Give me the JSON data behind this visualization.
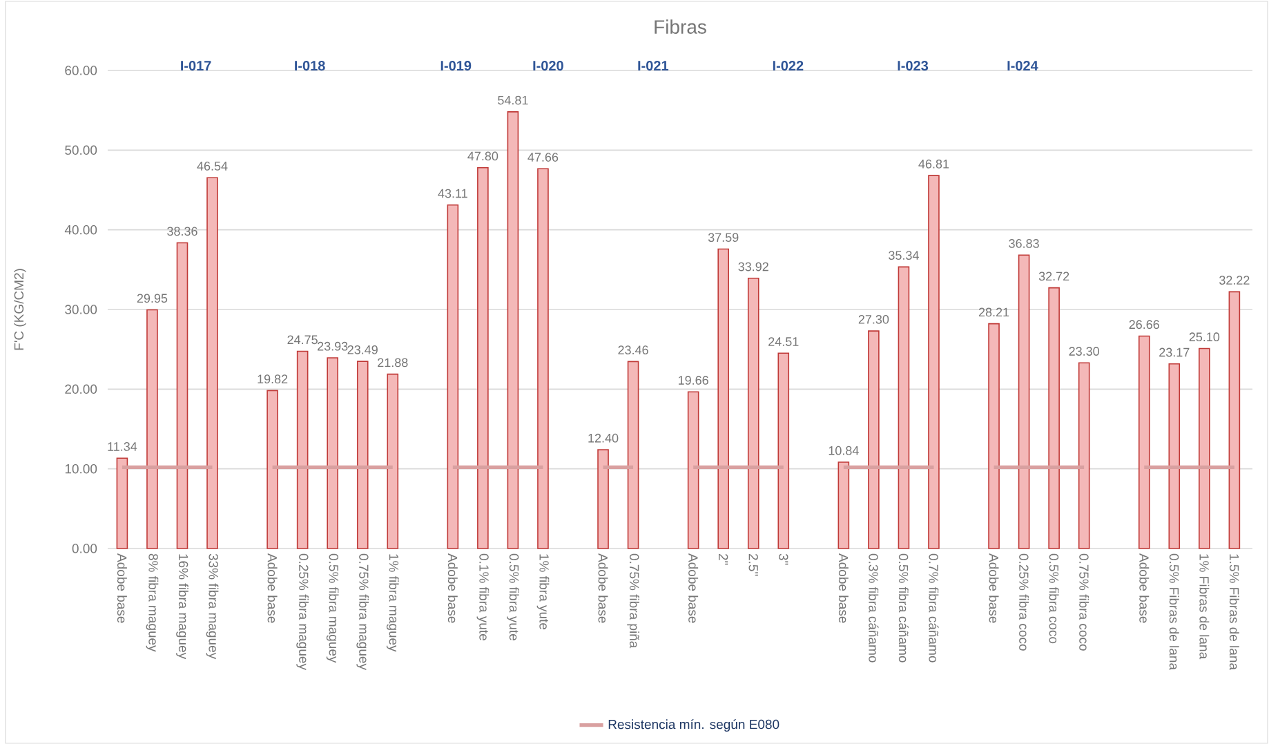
{
  "chart_data": {
    "type": "bar",
    "title": "Fibras",
    "ylabel": "F'C (KG/CM2)",
    "annotations": [
      "I-017",
      "I-018",
      "I-019",
      "I-020",
      "I-021",
      "I-022",
      "I-023",
      "I-024"
    ],
    "categories": [
      "Adobe base",
      "8% fibra maguey",
      "16% fibra maguey",
      "33% fibra maguey",
      null,
      "Adobe base",
      "0.25% fibra maguey",
      "0.5% fibra maguey",
      "0.75% fibra maguey",
      "1% fibra maguey",
      null,
      "Adobe base",
      "0.1% fibra yute",
      "0.5% fibra yute",
      "1% fibra yute",
      null,
      "Adobe base",
      "0.75% fibra piña",
      null,
      "Adobe base",
      "2\"",
      "2.5\"",
      "3\"",
      null,
      "Adobe base",
      "0.3% fibra cáñamo",
      "0.5% fibra cáñamo",
      "0.7% fibra cáñamo",
      null,
      "Adobe base",
      "0.25% fibra coco",
      "0.5% fibra coco",
      "0.75% fibra coco",
      null,
      "Adobe base",
      "0.5% Fibras de lana",
      "1% Fibras de lana",
      "1.5% Fibras de lana"
    ],
    "series": [
      {
        "color": "#f4b8b8",
        "values": [
          11.34,
          29.95,
          38.36,
          46.54,
          null,
          19.82,
          24.75,
          23.93,
          23.49,
          21.88,
          null,
          43.11,
          47.8,
          54.81,
          47.66,
          null,
          12.4,
          23.46,
          null,
          19.66,
          37.59,
          33.92,
          24.51,
          null,
          10.84,
          27.3,
          35.34,
          46.81,
          null,
          28.21,
          36.83,
          32.72,
          23.3,
          null,
          26.66,
          23.17,
          25.1,
          32.22
        ],
        "value_labels": [
          "11.34",
          "29.95",
          "38.36",
          "46.54",
          null,
          "19.82",
          "24.75",
          "23.93",
          "23.49",
          "21.88",
          null,
          "43.11",
          "47.80",
          "54.81",
          "47.66",
          null,
          "12.40",
          "23.46",
          null,
          "19.66",
          "37.59",
          "33.92",
          "24.51",
          null,
          "10.84",
          "27.30",
          "35.34",
          "46.81",
          null,
          "28.21",
          "36.83",
          "32.72",
          "23.30",
          null,
          "26.66",
          "23.17",
          "25.10",
          "32.22"
        ]
      },
      {
        "type": "line",
        "name": "Resistencia mín. según E080",
        "color": "#d9a0a0",
        "values": [
          10.2,
          10.2,
          10.2,
          10.2,
          null,
          10.2,
          10.2,
          10.2,
          10.2,
          10.2,
          null,
          10.2,
          10.2,
          10.2,
          10.2,
          null,
          10.2,
          10.2,
          null,
          10.2,
          10.2,
          10.2,
          10.2,
          null,
          10.2,
          10.2,
          10.2,
          10.2,
          null,
          10.2,
          10.2,
          10.2,
          10.2,
          null,
          10.2,
          10.2,
          10.2,
          10.2
        ]
      }
    ],
    "ylim": [
      0,
      60
    ],
    "yticks": [
      {
        "value": 0,
        "label": "0.00"
      },
      {
        "value": 10,
        "label": "10.00"
      },
      {
        "value": 20,
        "label": "20.00"
      },
      {
        "value": 30,
        "label": "30.00"
      },
      {
        "value": 40,
        "label": "40.00"
      },
      {
        "value": 50,
        "label": "50.00"
      },
      {
        "value": 60,
        "label": "60.00"
      }
    ],
    "grid": "y",
    "legend": "bottom"
  }
}
